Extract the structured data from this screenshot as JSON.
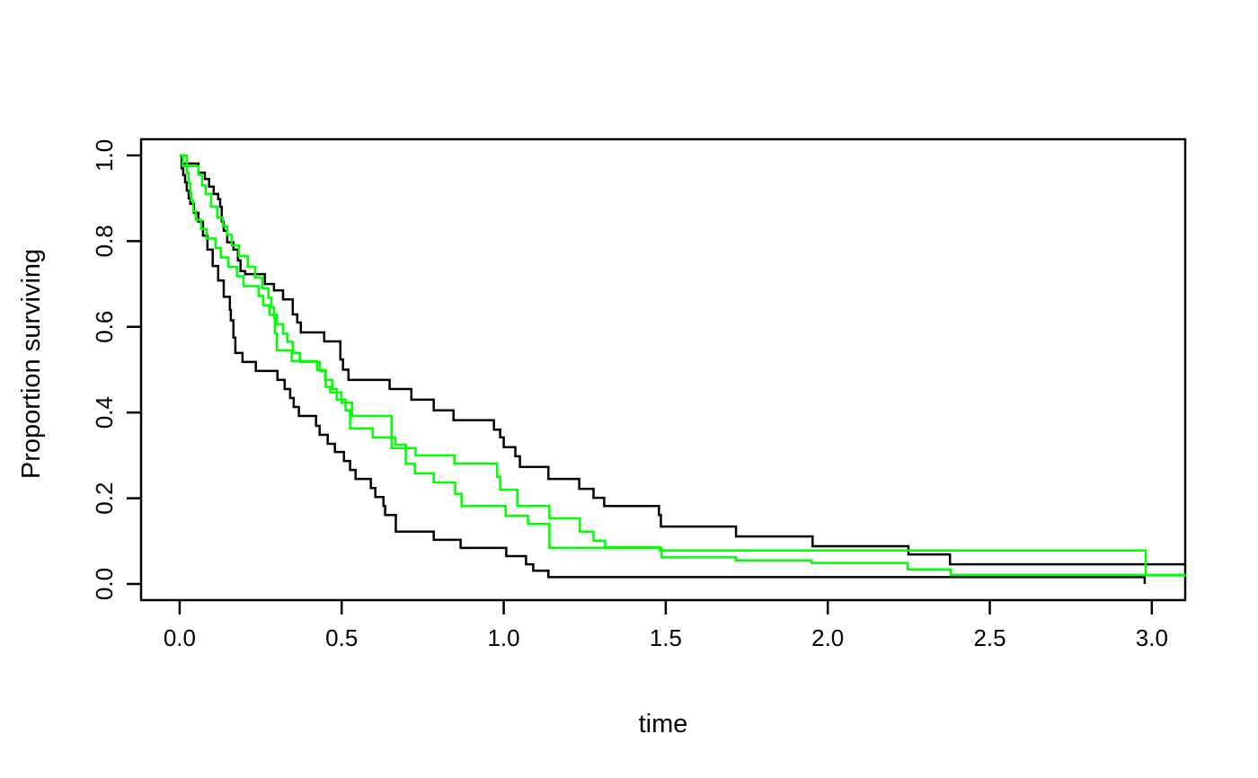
{
  "page": {
    "background": "#ffffff",
    "frame_color": "#000000"
  },
  "chart_data": {
    "type": "line",
    "subtype": "step-survival-curves",
    "title": "",
    "xlabel": "time",
    "ylabel": "Proportion surviving",
    "grid": false,
    "legend": null,
    "xlim": [
      -0.119,
      3.103
    ],
    "ylim": [
      -0.0377,
      1.0377
    ],
    "x_ticks": {
      "values": [
        0,
        0.5,
        1.0,
        1.5,
        2.0,
        2.5,
        3.0
      ],
      "labels": [
        "0.0",
        "0.5",
        "1.0",
        "1.5",
        "2.0",
        "2.5",
        "3.0"
      ]
    },
    "y_ticks": {
      "values": [
        0,
        0.2,
        0.4,
        0.6,
        0.8,
        1.0
      ],
      "labels": [
        "0.0",
        "0.2",
        "0.4",
        "0.6",
        "0.8",
        "1.0"
      ]
    },
    "series": [
      {
        "name": "black-lower",
        "color": "#000000",
        "end_t": null,
        "points": [
          [
            0,
            1
          ],
          [
            0.006,
            0.97
          ],
          [
            0.011,
            0.954
          ],
          [
            0.017,
            0.937
          ],
          [
            0.022,
            0.918
          ],
          [
            0.028,
            0.9
          ],
          [
            0.033,
            0.887
          ],
          [
            0.044,
            0.866
          ],
          [
            0.058,
            0.845
          ],
          [
            0.072,
            0.813
          ],
          [
            0.086,
            0.78
          ],
          [
            0.102,
            0.742
          ],
          [
            0.119,
            0.708
          ],
          [
            0.136,
            0.67
          ],
          [
            0.155,
            0.64
          ],
          [
            0.158,
            0.615
          ],
          [
            0.166,
            0.575
          ],
          [
            0.172,
            0.539
          ],
          [
            0.194,
            0.518
          ],
          [
            0.235,
            0.497
          ],
          [
            0.302,
            0.476
          ],
          [
            0.324,
            0.455
          ],
          [
            0.341,
            0.434
          ],
          [
            0.352,
            0.413
          ],
          [
            0.368,
            0.392
          ],
          [
            0.421,
            0.369
          ],
          [
            0.432,
            0.348
          ],
          [
            0.457,
            0.327
          ],
          [
            0.479,
            0.308
          ],
          [
            0.507,
            0.287
          ],
          [
            0.526,
            0.266
          ],
          [
            0.543,
            0.245
          ],
          [
            0.59,
            0.224
          ],
          [
            0.604,
            0.203
          ],
          [
            0.629,
            0.182
          ],
          [
            0.634,
            0.161
          ],
          [
            0.667,
            0.122
          ],
          [
            0.784,
            0.103
          ],
          [
            0.867,
            0.084
          ],
          [
            1.008,
            0.065
          ],
          [
            1.069,
            0.046
          ],
          [
            1.091,
            0.031
          ],
          [
            1.138,
            0.016
          ],
          [
            2.978,
            0
          ]
        ]
      },
      {
        "name": "black-upper",
        "color": "#000000",
        "end_t": 3.103,
        "points": [
          [
            0,
            1
          ],
          [
            0.008,
            0.981
          ],
          [
            0.058,
            0.96
          ],
          [
            0.078,
            0.945
          ],
          [
            0.091,
            0.927
          ],
          [
            0.105,
            0.91
          ],
          [
            0.119,
            0.898
          ],
          [
            0.125,
            0.88
          ],
          [
            0.13,
            0.845
          ],
          [
            0.136,
            0.824
          ],
          [
            0.147,
            0.797
          ],
          [
            0.166,
            0.78
          ],
          [
            0.18,
            0.755
          ],
          [
            0.188,
            0.73
          ],
          [
            0.202,
            0.723
          ],
          [
            0.263,
            0.7
          ],
          [
            0.291,
            0.685
          ],
          [
            0.319,
            0.664
          ],
          [
            0.349,
            0.629
          ],
          [
            0.363,
            0.61
          ],
          [
            0.374,
            0.587
          ],
          [
            0.446,
            0.566
          ],
          [
            0.496,
            0.524
          ],
          [
            0.504,
            0.5
          ],
          [
            0.521,
            0.476
          ],
          [
            0.648,
            0.455
          ],
          [
            0.715,
            0.43
          ],
          [
            0.784,
            0.405
          ],
          [
            0.845,
            0.382
          ],
          [
            0.97,
            0.36
          ],
          [
            0.989,
            0.342
          ],
          [
            1.0,
            0.319
          ],
          [
            1.036,
            0.298
          ],
          [
            1.05,
            0.273
          ],
          [
            1.138,
            0.245
          ],
          [
            1.233,
            0.222
          ],
          [
            1.277,
            0.201
          ],
          [
            1.31,
            0.182
          ],
          [
            1.479,
            0.161
          ],
          [
            1.485,
            0.134
          ],
          [
            1.717,
            0.111
          ],
          [
            1.953,
            0.088
          ],
          [
            2.249,
            0.069
          ],
          [
            2.377,
            0.046
          ]
        ]
      },
      {
        "name": "green-lower",
        "color": "#00FF00",
        "end_t": 3.105,
        "points": [
          [
            0,
            1
          ],
          [
            0.022,
            0.96
          ],
          [
            0.028,
            0.935
          ],
          [
            0.033,
            0.912
          ],
          [
            0.036,
            0.895
          ],
          [
            0.042,
            0.87
          ],
          [
            0.05,
            0.85
          ],
          [
            0.066,
            0.828
          ],
          [
            0.083,
            0.806
          ],
          [
            0.111,
            0.784
          ],
          [
            0.127,
            0.762
          ],
          [
            0.15,
            0.74
          ],
          [
            0.177,
            0.718
          ],
          [
            0.197,
            0.695
          ],
          [
            0.244,
            0.672
          ],
          [
            0.258,
            0.65
          ],
          [
            0.277,
            0.628
          ],
          [
            0.3,
            0.606
          ],
          [
            0.319,
            0.584
          ],
          [
            0.332,
            0.565
          ],
          [
            0.349,
            0.539
          ],
          [
            0.371,
            0.518
          ],
          [
            0.432,
            0.497
          ],
          [
            0.449,
            0.476
          ],
          [
            0.471,
            0.455
          ],
          [
            0.485,
            0.43
          ],
          [
            0.512,
            0.405
          ],
          [
            0.526,
            0.363
          ],
          [
            0.596,
            0.342
          ],
          [
            0.665,
            0.325
          ],
          [
            0.698,
            0.28
          ],
          [
            0.726,
            0.258
          ],
          [
            0.784,
            0.237
          ],
          [
            0.85,
            0.21
          ],
          [
            0.87,
            0.182
          ],
          [
            1.006,
            0.159
          ],
          [
            1.075,
            0.14
          ],
          [
            1.141,
            0.084
          ],
          [
            1.487,
            0.062
          ],
          [
            1.717,
            0.055
          ],
          [
            1.95,
            0.049
          ],
          [
            2.247,
            0.034
          ],
          [
            2.38,
            0.021
          ]
        ]
      },
      {
        "name": "green-upper",
        "color": "#00FF00",
        "end_t": 3.105,
        "points": [
          [
            0,
            1
          ],
          [
            0.01,
            0.975
          ],
          [
            0.058,
            0.955
          ],
          [
            0.069,
            0.93
          ],
          [
            0.08,
            0.91
          ],
          [
            0.097,
            0.88
          ],
          [
            0.116,
            0.855
          ],
          [
            0.133,
            0.835
          ],
          [
            0.147,
            0.815
          ],
          [
            0.161,
            0.79
          ],
          [
            0.183,
            0.765
          ],
          [
            0.21,
            0.74
          ],
          [
            0.233,
            0.715
          ],
          [
            0.255,
            0.69
          ],
          [
            0.274,
            0.668
          ],
          [
            0.283,
            0.645
          ],
          [
            0.291,
            0.62
          ],
          [
            0.294,
            0.585
          ],
          [
            0.3,
            0.545
          ],
          [
            0.346,
            0.52
          ],
          [
            0.424,
            0.499
          ],
          [
            0.451,
            0.46
          ],
          [
            0.465,
            0.447
          ],
          [
            0.499,
            0.423
          ],
          [
            0.532,
            0.392
          ],
          [
            0.654,
            0.317
          ],
          [
            0.728,
            0.3
          ],
          [
            0.848,
            0.281
          ],
          [
            0.98,
            0.25
          ],
          [
            0.989,
            0.22
          ],
          [
            1.042,
            0.182
          ],
          [
            1.141,
            0.153
          ],
          [
            1.235,
            0.122
          ],
          [
            1.277,
            0.101
          ],
          [
            1.313,
            0.086
          ],
          [
            1.482,
            0.078
          ],
          [
            2.981,
            0.02
          ]
        ]
      }
    ]
  }
}
